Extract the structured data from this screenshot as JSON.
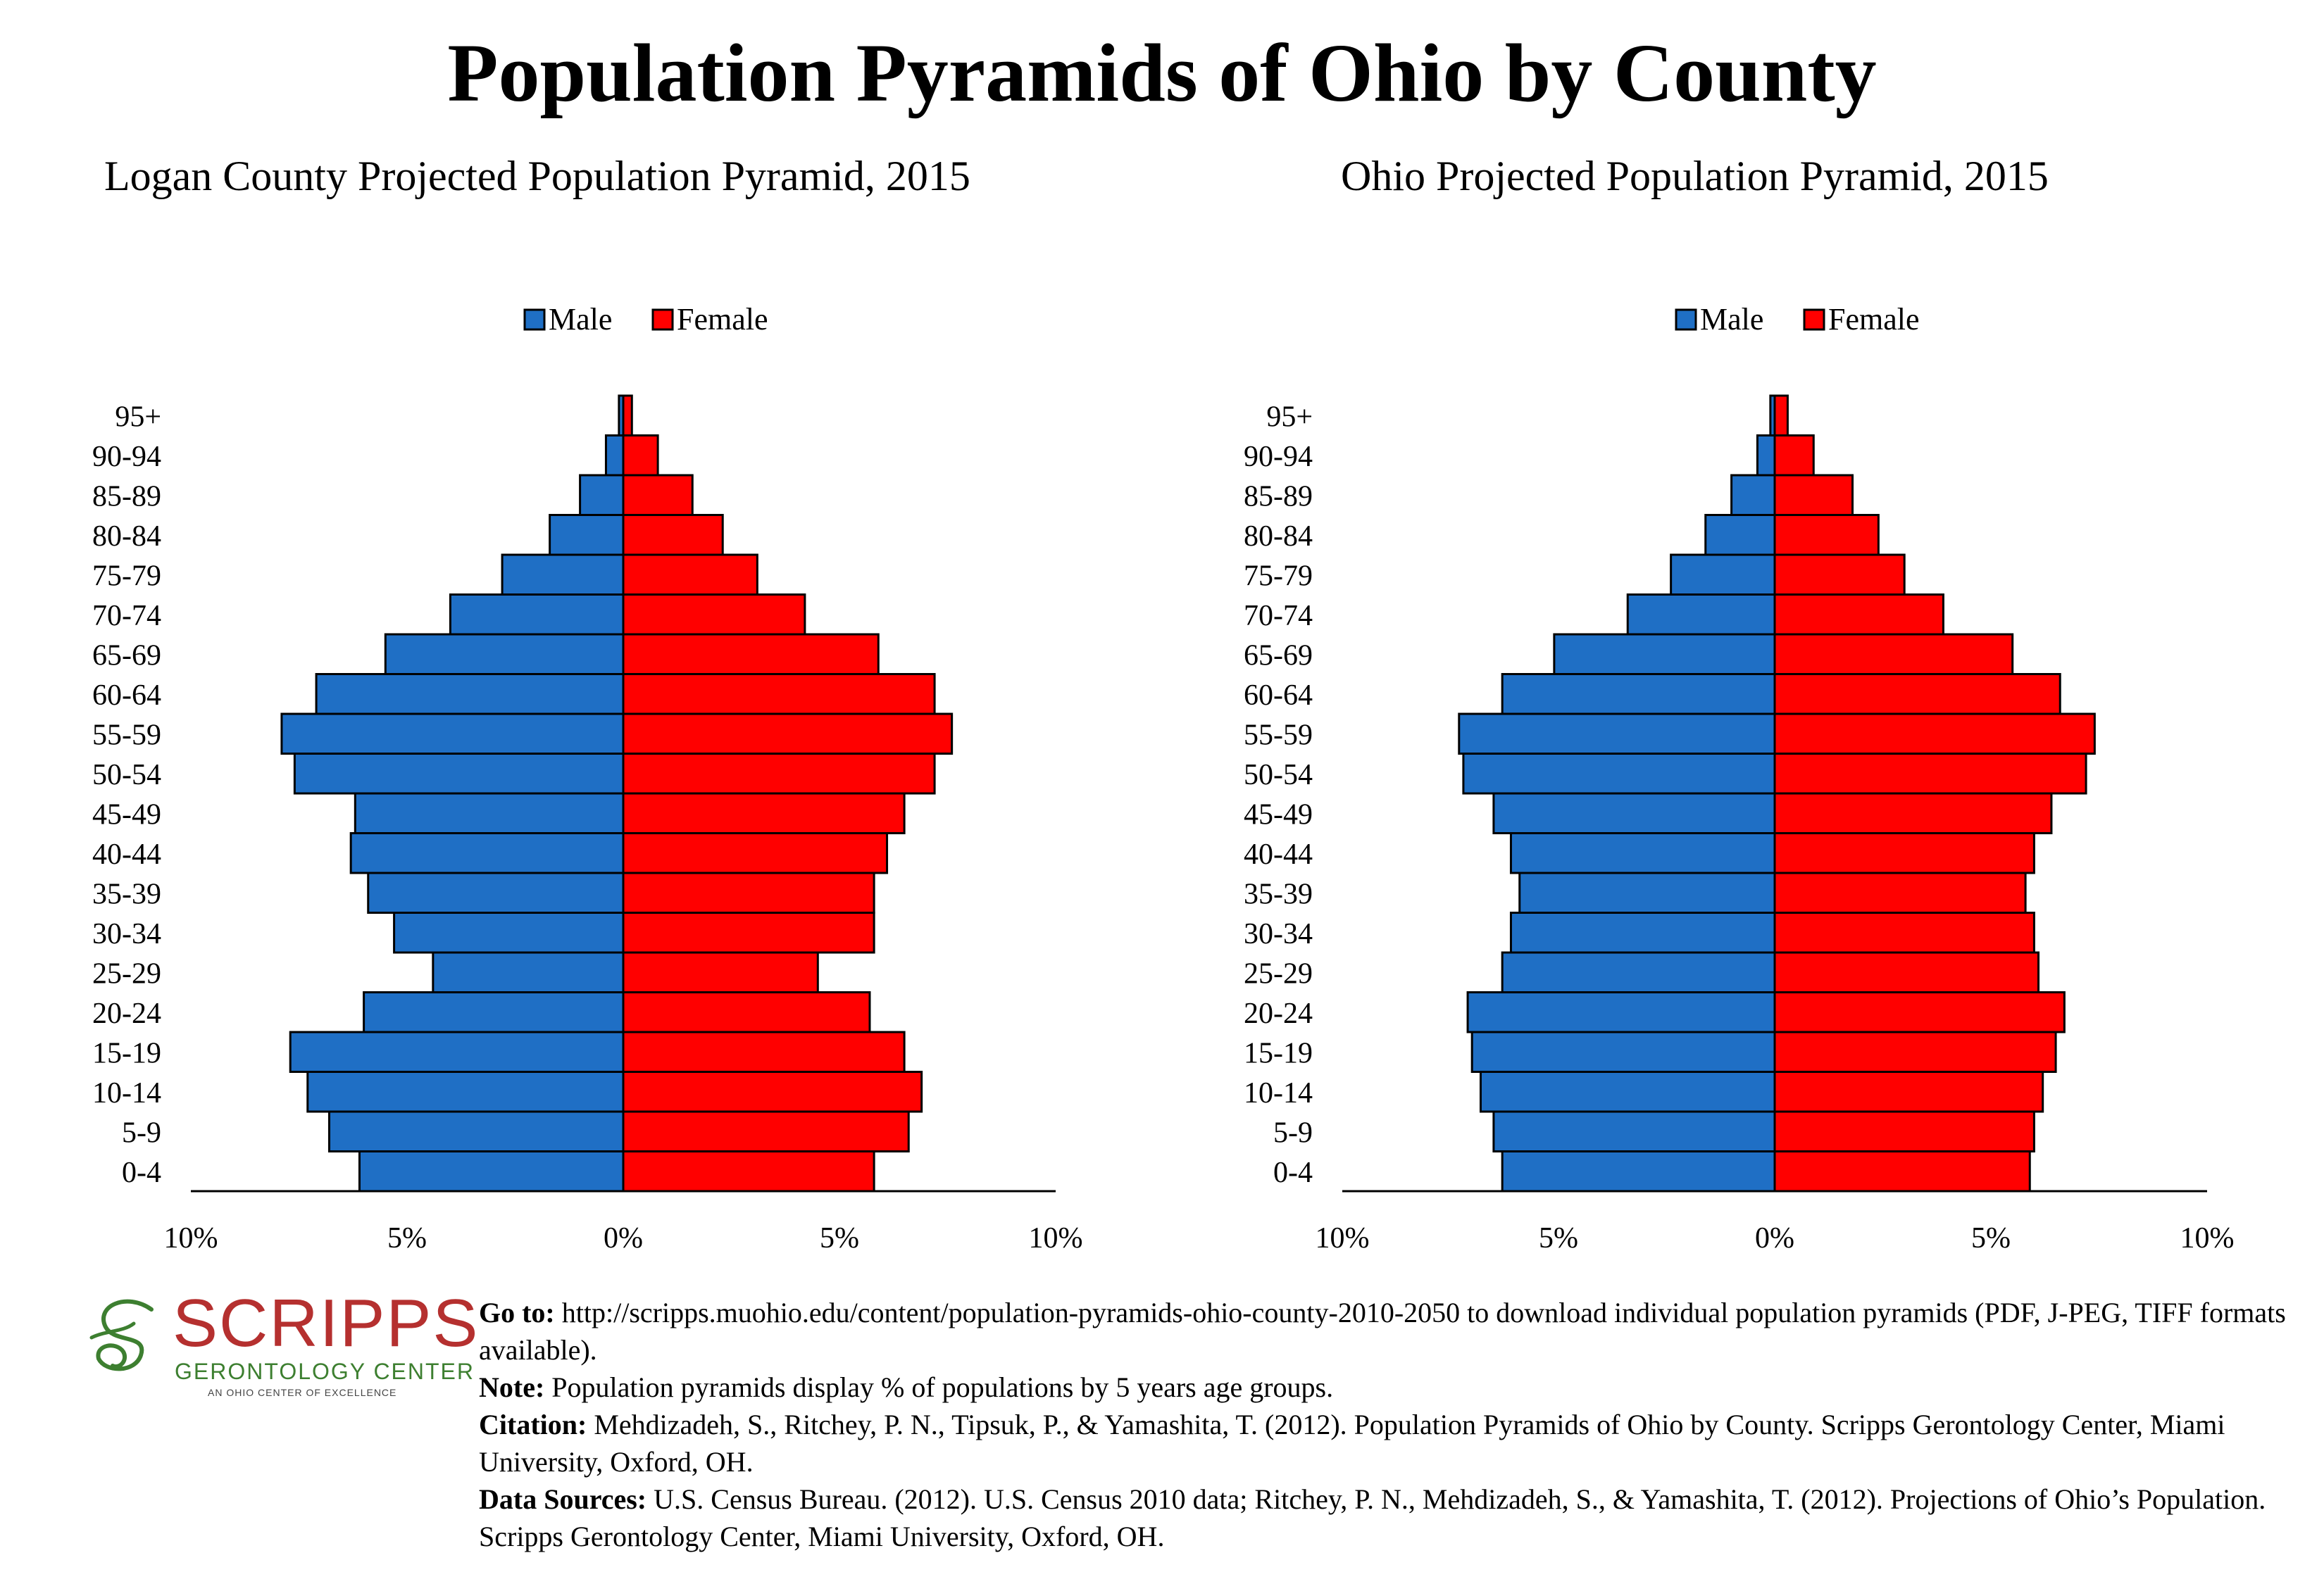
{
  "main_title": "Population Pyramids of Ohio by County",
  "colors": {
    "male": "#1f6fc5",
    "female": "#ff0000",
    "border": "#000000"
  },
  "chart_data": [
    {
      "type": "bar",
      "title": "Logan County Projected Population Pyramid, 2015",
      "legend": {
        "placement": "top-center",
        "entries": [
          "Male",
          "Female"
        ]
      },
      "categories": [
        "95+",
        "90-94",
        "85-89",
        "80-84",
        "75-79",
        "70-74",
        "65-69",
        "60-64",
        "55-59",
        "50-54",
        "45-49",
        "40-44",
        "35-39",
        "30-34",
        "25-29",
        "20-24",
        "15-19",
        "10-14",
        "5-9",
        "0-4"
      ],
      "series": [
        {
          "name": "Male",
          "values": [
            0.1,
            0.4,
            1.0,
            1.7,
            2.8,
            4.0,
            5.5,
            7.1,
            7.9,
            7.6,
            6.2,
            6.3,
            5.9,
            5.3,
            4.4,
            6.0,
            7.7,
            7.3,
            6.8,
            6.1
          ]
        },
        {
          "name": "Female",
          "values": [
            0.2,
            0.8,
            1.6,
            2.3,
            3.1,
            4.2,
            5.9,
            7.2,
            7.6,
            7.2,
            6.5,
            6.1,
            5.8,
            5.8,
            4.5,
            5.7,
            6.5,
            6.9,
            6.6,
            5.8
          ]
        }
      ],
      "xlim": [
        -10,
        10
      ],
      "x_ticks": [
        "10%",
        "5%",
        "0%",
        "5%",
        "10%"
      ],
      "grid": false
    },
    {
      "type": "bar",
      "title": "Ohio Projected Population Pyramid, 2015",
      "legend": {
        "placement": "top-center",
        "entries": [
          "Male",
          "Female"
        ]
      },
      "categories": [
        "95+",
        "90-94",
        "85-89",
        "80-84",
        "75-79",
        "70-74",
        "65-69",
        "60-64",
        "55-59",
        "50-54",
        "45-49",
        "40-44",
        "35-39",
        "30-34",
        "25-29",
        "20-24",
        "15-19",
        "10-14",
        "5-9",
        "0-4"
      ],
      "series": [
        {
          "name": "Male",
          "values": [
            0.1,
            0.4,
            1.0,
            1.6,
            2.4,
            3.4,
            5.1,
            6.3,
            7.3,
            7.2,
            6.5,
            6.1,
            5.9,
            6.1,
            6.3,
            7.1,
            7.0,
            6.8,
            6.5,
            6.3
          ]
        },
        {
          "name": "Female",
          "values": [
            0.3,
            0.9,
            1.8,
            2.4,
            3.0,
            3.9,
            5.5,
            6.6,
            7.4,
            7.2,
            6.4,
            6.0,
            5.8,
            6.0,
            6.1,
            6.7,
            6.5,
            6.2,
            6.0,
            5.9
          ]
        }
      ],
      "xlim": [
        -10,
        10
      ],
      "x_ticks": [
        "10%",
        "5%",
        "0%",
        "5%",
        "10%"
      ],
      "grid": false
    }
  ],
  "logo": {
    "wordmark": "SCRIPPS",
    "subtitle": "GERONTOLOGY CENTER",
    "tagline": "AN OHIO CENTER OF EXCELLENCE",
    "colors": {
      "wordmark": "#b5302f",
      "subtitle": "#3d7f30"
    }
  },
  "footer": {
    "goto_label": "Go to:",
    "goto_text": " http://scripps.muohio.edu/content/population-pyramids-ohio-county-2010-2050 to download individual population pyramids (PDF, J-PEG, TIFF formats available).",
    "note_label": "Note:",
    "note_text": " Population pyramids display % of populations by 5 years age groups.",
    "citation_label": "Citation:",
    "citation_text": " Mehdizadeh, S., Ritchey, P. N., Tipsuk, P., & Yamashita, T. (2012). Population Pyramids of Ohio by County. Scripps Gerontology Center, Miami University, Oxford, OH.",
    "sources_label": "Data Sources:",
    "sources_text": " U.S. Census Bureau. (2012). U.S. Census 2010 data; Ritchey, P. N., Mehdizadeh, S., & Yamashita, T. (2012). Projections of Ohio’s Population. Scripps Gerontology Center, Miami University, Oxford, OH."
  }
}
